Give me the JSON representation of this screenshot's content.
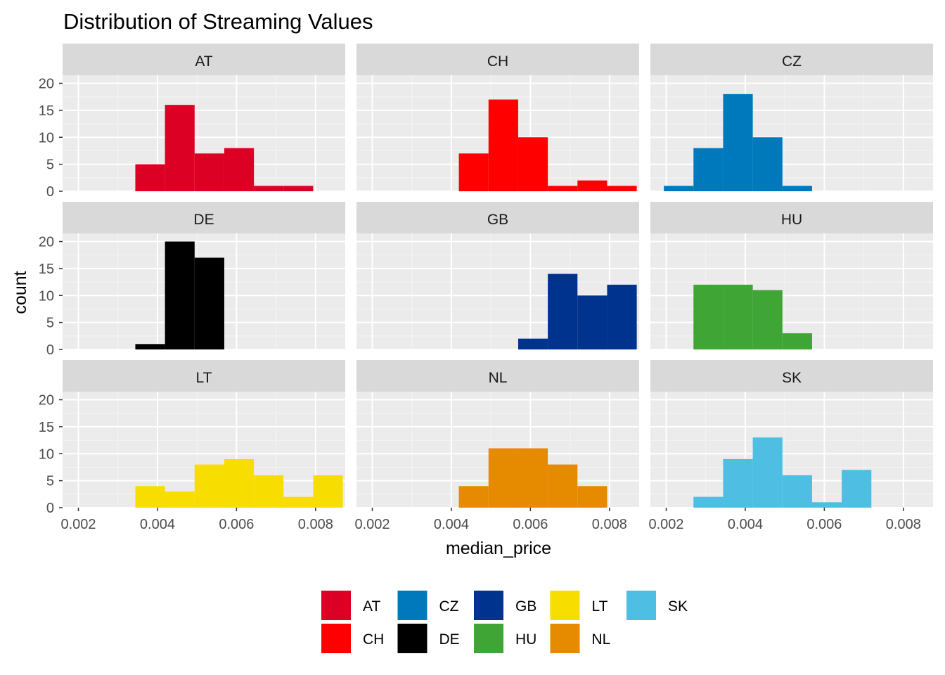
{
  "chart_data": {
    "type": "bar",
    "title": "Distribution of Streaming Values",
    "xlabel": "median_price",
    "ylabel": "count",
    "xlim": [
      0.0016,
      0.00875
    ],
    "ylim": [
      0,
      21.5
    ],
    "x_ticks": [
      0.002,
      0.004,
      0.006,
      0.008
    ],
    "x_tick_labels": [
      "0.002",
      "0.004",
      "0.006",
      "0.008"
    ],
    "y_ticks": [
      0,
      5,
      10,
      15,
      20
    ],
    "y_tick_labels": [
      "0",
      "5",
      "10",
      "15",
      "20"
    ],
    "bin_edges": [
      0.00194,
      0.00269,
      0.00344,
      0.00419,
      0.00494,
      0.00569,
      0.00644,
      0.00719,
      0.00794,
      0.00869
    ],
    "legend_position": "bottom",
    "grid": true,
    "panels": [
      {
        "name": "AT",
        "color": "#DC0025",
        "counts": [
          0,
          0,
          5,
          16,
          7,
          8,
          1,
          1,
          0
        ]
      },
      {
        "name": "CH",
        "color": "#FF0000",
        "counts": [
          0,
          0,
          0,
          7,
          17,
          10,
          1,
          2,
          1
        ]
      },
      {
        "name": "CZ",
        "color": "#0079BC",
        "counts": [
          1,
          8,
          18,
          10,
          1,
          0,
          0,
          0,
          0
        ]
      },
      {
        "name": "DE",
        "color": "#000000",
        "counts": [
          0,
          0,
          1,
          20,
          17,
          0,
          0,
          0,
          0
        ]
      },
      {
        "name": "GB",
        "color": "#00338D",
        "counts": [
          0,
          0,
          0,
          0,
          0,
          2,
          14,
          10,
          12
        ]
      },
      {
        "name": "HU",
        "color": "#3FA535",
        "counts": [
          0,
          12,
          12,
          11,
          3,
          0,
          0,
          0,
          0
        ]
      },
      {
        "name": "LT",
        "color": "#F8DE00",
        "counts": [
          0,
          0,
          4,
          3,
          8,
          9,
          6,
          2,
          6
        ]
      },
      {
        "name": "NL",
        "color": "#E68A00",
        "counts": [
          0,
          0,
          0,
          4,
          11,
          11,
          8,
          4,
          0
        ]
      },
      {
        "name": "SK",
        "color": "#4EBEE3",
        "counts": [
          0,
          2,
          9,
          13,
          6,
          1,
          7,
          0,
          0
        ]
      }
    ]
  },
  "legend": {
    "items": [
      {
        "label": "AT",
        "color": "#DC0025"
      },
      {
        "label": "CH",
        "color": "#FF0000"
      },
      {
        "label": "CZ",
        "color": "#0079BC"
      },
      {
        "label": "DE",
        "color": "#000000"
      },
      {
        "label": "GB",
        "color": "#00338D"
      },
      {
        "label": "HU",
        "color": "#3FA535"
      },
      {
        "label": "LT",
        "color": "#F8DE00"
      },
      {
        "label": "NL",
        "color": "#E68A00"
      },
      {
        "label": "SK",
        "color": "#4EBEE3"
      }
    ]
  }
}
